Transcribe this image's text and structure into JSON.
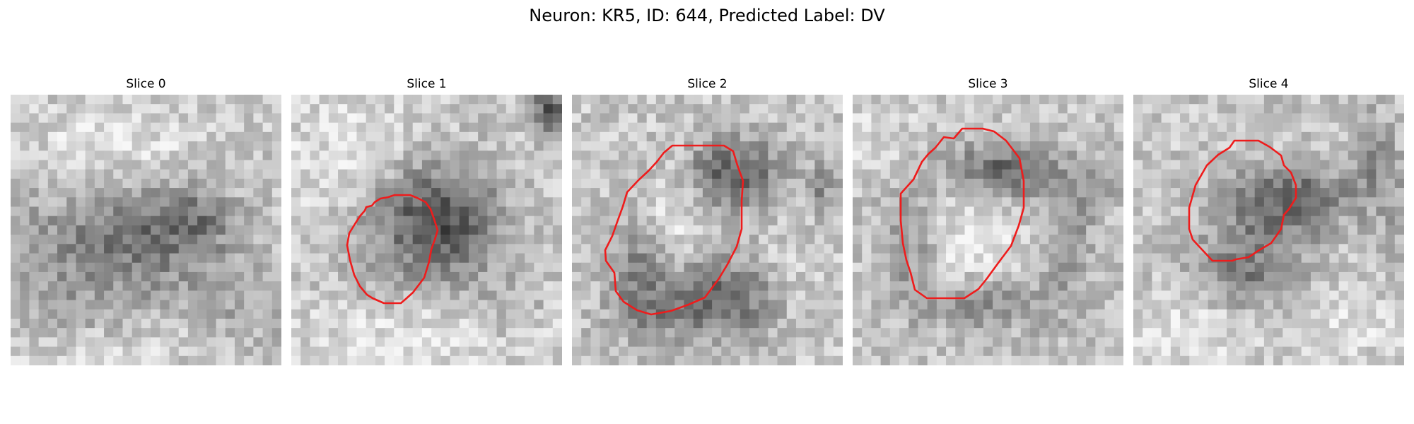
{
  "figure": {
    "title": "Neuron: KR5, ID: 644, Predicted Label: DV"
  },
  "slices": [
    {
      "title": "Slice 0",
      "has_contour": false,
      "dark_blobs": [
        [
          0.28,
          0.57,
          0.34,
          0.23,
          0.22
        ],
        [
          0.62,
          0.52,
          0.27,
          0.2,
          0.17
        ],
        [
          0.7,
          0.45,
          0.1,
          0.1,
          0.15
        ],
        [
          0.85,
          0.78,
          0.18,
          0.16,
          0.12
        ],
        [
          0.2,
          0.85,
          0.3,
          0.12,
          0.08
        ],
        [
          0.5,
          0.45,
          0.15,
          0.15,
          0.1
        ]
      ],
      "light_blobs": [
        [
          0.4,
          0.2,
          0.3,
          0.18,
          0.12
        ],
        [
          0.3,
          0.92,
          0.4,
          0.1,
          0.1
        ]
      ]
    },
    {
      "title": "Slice 1",
      "has_contour": true,
      "dark_blobs": [
        [
          0.53,
          0.4,
          0.24,
          0.18,
          0.33
        ],
        [
          0.6,
          0.55,
          0.16,
          0.16,
          0.18
        ],
        [
          0.42,
          0.55,
          0.2,
          0.2,
          0.15
        ],
        [
          0.95,
          0.05,
          0.06,
          0.1,
          0.45
        ],
        [
          0.8,
          0.8,
          0.12,
          0.14,
          0.12
        ]
      ],
      "light_blobs": [
        [
          0.25,
          0.25,
          0.3,
          0.22,
          0.12
        ],
        [
          0.5,
          0.9,
          0.45,
          0.12,
          0.12
        ]
      ]
    },
    {
      "title": "Slice 2",
      "has_contour": true,
      "dark_blobs": [
        [
          0.6,
          0.29,
          0.18,
          0.13,
          0.4
        ],
        [
          0.55,
          0.7,
          0.2,
          0.13,
          0.22
        ],
        [
          0.25,
          0.6,
          0.1,
          0.25,
          0.25
        ],
        [
          0.48,
          0.8,
          0.3,
          0.12,
          0.25
        ],
        [
          0.92,
          0.35,
          0.06,
          0.1,
          0.2
        ]
      ],
      "light_blobs": [
        [
          0.35,
          0.45,
          0.14,
          0.2,
          0.15
        ],
        [
          0.8,
          0.7,
          0.12,
          0.2,
          0.08
        ]
      ]
    },
    {
      "title": "Slice 3",
      "has_contour": true,
      "dark_blobs": [
        [
          0.55,
          0.28,
          0.2,
          0.1,
          0.38
        ],
        [
          0.5,
          0.78,
          0.22,
          0.1,
          0.25
        ],
        [
          0.2,
          0.55,
          0.1,
          0.25,
          0.2
        ],
        [
          0.8,
          0.55,
          0.1,
          0.25,
          0.18
        ],
        [
          0.9,
          0.35,
          0.1,
          0.1,
          0.12
        ]
      ],
      "light_blobs": [
        [
          0.45,
          0.55,
          0.18,
          0.2,
          0.12
        ],
        [
          0.1,
          0.15,
          0.15,
          0.15,
          0.08
        ]
      ]
    },
    {
      "title": "Slice 4",
      "has_contour": true,
      "dark_blobs": [
        [
          0.6,
          0.38,
          0.2,
          0.12,
          0.35
        ],
        [
          0.45,
          0.55,
          0.2,
          0.2,
          0.22
        ],
        [
          0.4,
          0.7,
          0.2,
          0.12,
          0.15
        ],
        [
          0.88,
          0.25,
          0.08,
          0.2,
          0.2
        ],
        [
          0.97,
          0.5,
          0.05,
          0.3,
          0.1
        ]
      ],
      "light_blobs": [
        [
          0.25,
          0.85,
          0.3,
          0.12,
          0.12
        ],
        [
          0.8,
          0.85,
          0.2,
          0.12,
          0.1
        ]
      ]
    }
  ],
  "colors": {
    "contour": "#ee1c1c",
    "background": "#ffffff",
    "text": "#000000"
  }
}
